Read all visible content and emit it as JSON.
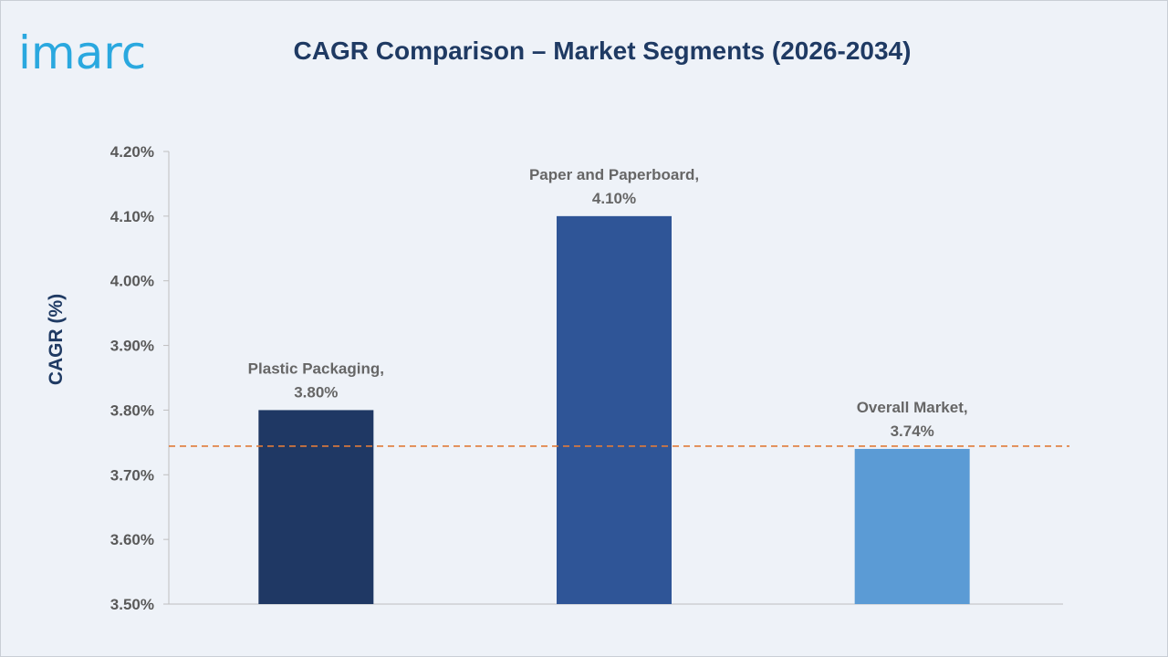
{
  "brand": {
    "logo_text": "imarc",
    "logo_color": "#2aa8df"
  },
  "chart_data": {
    "type": "bar",
    "title": "CAGR Comparison – Market Segments (2026-2034)",
    "ylabel": "CAGR (%)",
    "xlabel": "",
    "categories": [
      "Plastic Packaging",
      "Paper and Paperboard",
      "Overall Market"
    ],
    "values": [
      3.8,
      4.1,
      3.74
    ],
    "data_labels": [
      [
        "Plastic Packaging,",
        "3.80%"
      ],
      [
        "Paper and Paperboard,",
        "4.10%"
      ],
      [
        "Overall Market,",
        "3.74%"
      ]
    ],
    "colors": [
      "#1f3864",
      "#2f5597",
      "#5b9bd5"
    ],
    "ylim": [
      3.5,
      4.2
    ],
    "yticks": [
      3.5,
      3.6,
      3.7,
      3.8,
      3.9,
      4.0,
      4.1,
      4.2
    ],
    "ytick_labels": [
      "3.50%",
      "3.60%",
      "3.70%",
      "3.80%",
      "3.90%",
      "4.00%",
      "4.10%",
      "4.20%"
    ],
    "reference_line": {
      "value": 3.74,
      "style": "dashed",
      "color": "#e07b39"
    },
    "grid": false,
    "legend": "none"
  }
}
